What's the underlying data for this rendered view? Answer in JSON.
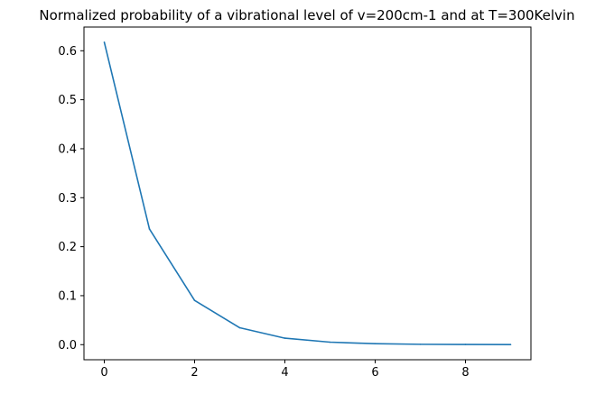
{
  "chart_data": {
    "type": "line",
    "title": "Normalized probability of a vibrational level of v=200cm-1 and at T=300Kelvin",
    "xlabel": "",
    "ylabel": "",
    "x": [
      0,
      1,
      2,
      3,
      4,
      5,
      6,
      7,
      8,
      9
    ],
    "series": [
      {
        "values": [
          0.6175,
          0.2362,
          0.0903,
          0.0345,
          0.0132,
          0.0051,
          0.0019,
          0.0007,
          0.0003,
          0.0001
        ]
      }
    ],
    "xlim": [
      -0.45,
      9.45
    ],
    "ylim": [
      -0.0308,
      0.6484
    ],
    "xticks": [
      0,
      2,
      4,
      6,
      8
    ],
    "yticks": [
      0.0,
      0.1,
      0.2,
      0.3,
      0.4,
      0.5,
      0.6
    ],
    "xtick_labels": [
      "0",
      "2",
      "4",
      "6",
      "8"
    ],
    "ytick_labels": [
      "0.0",
      "0.1",
      "0.2",
      "0.3",
      "0.4",
      "0.5",
      "0.6"
    ],
    "grid": false,
    "legend": "none",
    "colors": {
      "line": "#1f77b4",
      "axes": "#000000",
      "text": "#000000",
      "background": "#ffffff"
    }
  }
}
